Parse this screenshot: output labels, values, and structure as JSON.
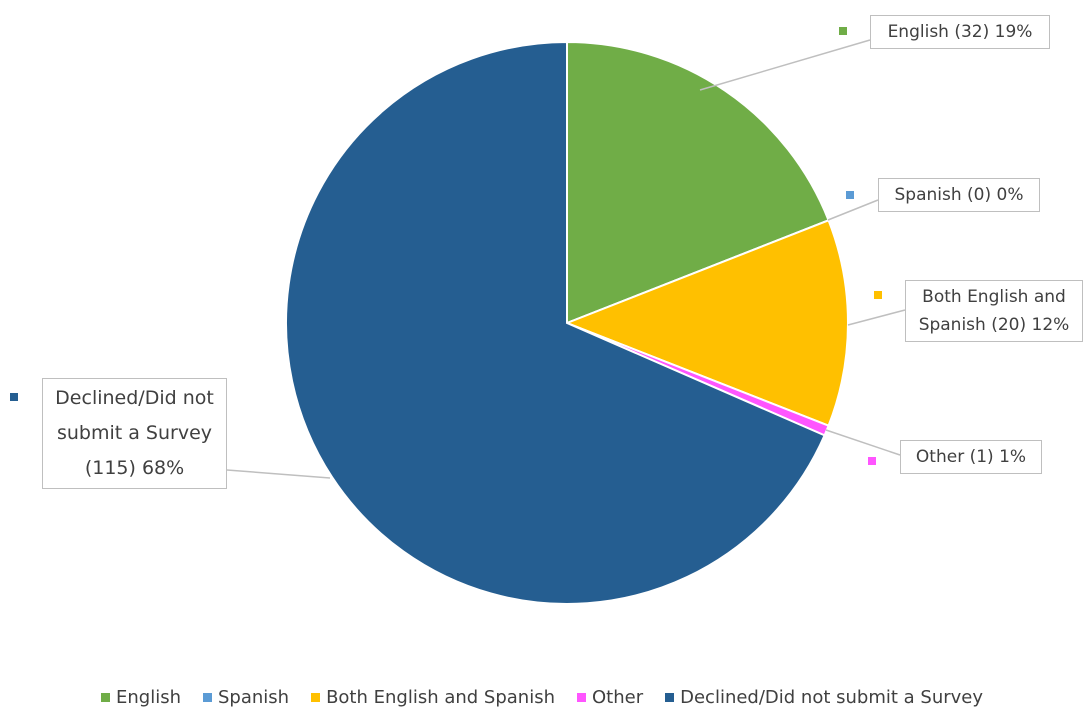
{
  "chart_data": {
    "type": "pie",
    "categories": [
      "English",
      "Spanish",
      "Both English and Spanish",
      "Other",
      "Declined/Did not submit a Survey"
    ],
    "values": [
      32,
      0,
      20,
      1,
      115
    ],
    "value_labels": [
      "English (32) 19%",
      "Spanish (0) 0%",
      "Both English and Spanish (20) 12%",
      "Other (1) 1%",
      "Declined/Did not submit a Survey (115) 68%"
    ],
    "colors": [
      "#70ad47",
      "#5b9bd5",
      "#ffc000",
      "#ff55ff",
      "#255e91"
    ],
    "legend": "bottom"
  }
}
